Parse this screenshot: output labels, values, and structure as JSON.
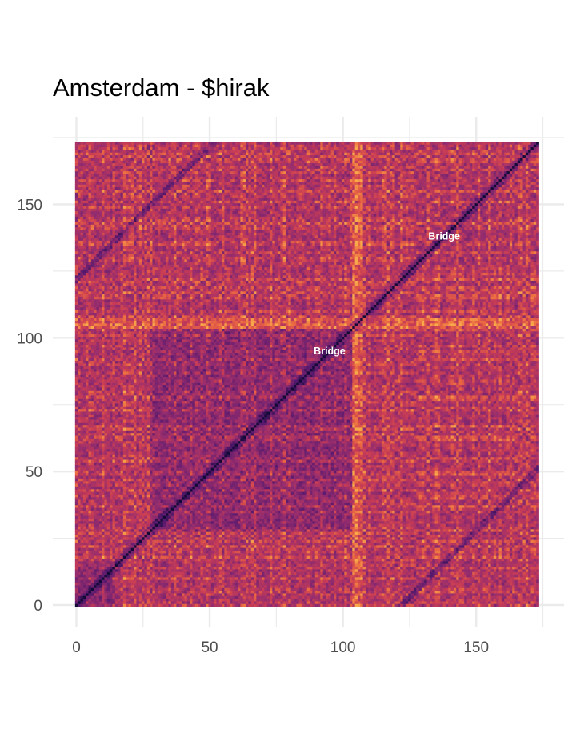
{
  "chart_data": {
    "type": "heatmap",
    "title": "Amsterdam - $hirak",
    "xlabel": "",
    "ylabel": "",
    "xlim": [
      -8.5,
      182
    ],
    "ylim": [
      -8.5,
      182
    ],
    "matrix_size": 174,
    "x_ticks": [
      0,
      50,
      100,
      150
    ],
    "y_ticks": [
      0,
      50,
      100,
      150
    ],
    "grid": true,
    "colormap": "inferno",
    "colors": {
      "low": "#1a0b40",
      "mid": "#c43c5a",
      "high": "#f5a34a",
      "grid": "#ebebeb",
      "tick_text": "#4d4d4d"
    },
    "annotations": [
      {
        "text": "Bridge",
        "x": 138,
        "y": 138
      },
      {
        "text": "Bridge",
        "x": 95,
        "y": 95
      }
    ],
    "section_boundaries": [
      0,
      15,
      28,
      104,
      108,
      174
    ]
  }
}
